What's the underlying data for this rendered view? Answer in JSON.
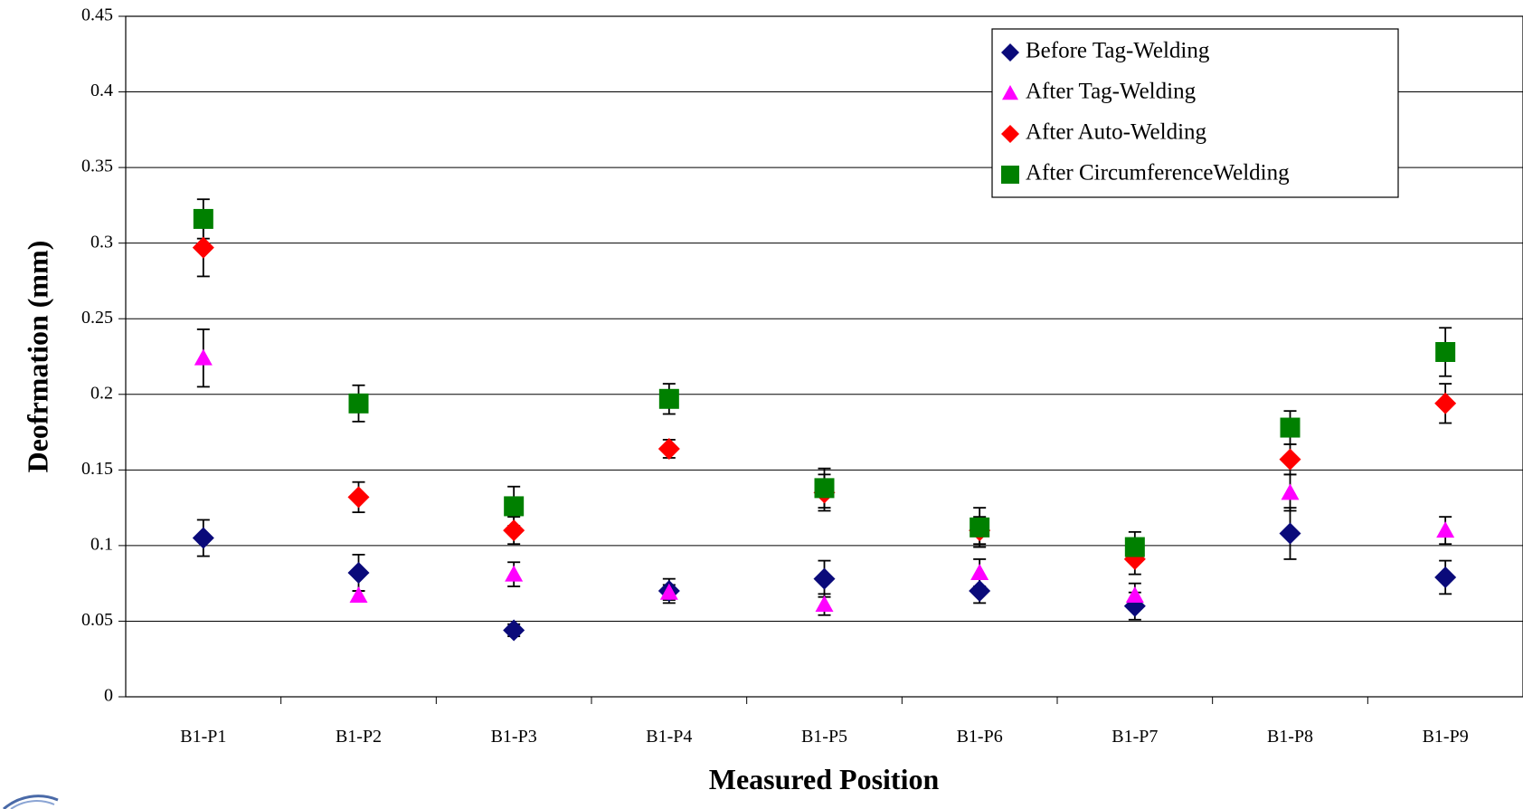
{
  "chart_data": {
    "type": "scatter",
    "xlabel": "Measured Position",
    "ylabel": "Deofrmation (mm)",
    "categories": [
      "B1-P1",
      "B1-P2",
      "B1-P3",
      "B1-P4",
      "B1-P5",
      "B1-P6",
      "B1-P7",
      "B1-P8",
      "B1-P9"
    ],
    "ylim": [
      0,
      0.45
    ],
    "yticks": [
      "0",
      "0.05",
      "0.1",
      "0.15",
      "0.2",
      "0.25",
      "0.3",
      "0.35",
      "0.4",
      "0.45"
    ],
    "ytick_values": [
      0,
      0.05,
      0.1,
      0.15,
      0.2,
      0.25,
      0.3,
      0.35,
      0.4,
      0.45
    ],
    "grid": "horizontal",
    "legend_position": "top-right",
    "series": [
      {
        "name": "Before Tag-Welding",
        "marker": "diamond",
        "color": "#0a0a7a",
        "values": [
          0.105,
          0.082,
          0.044,
          0.07,
          0.078,
          0.07,
          0.06,
          0.108,
          0.079
        ],
        "errors": [
          0.012,
          0.012,
          0.004,
          0.008,
          0.012,
          0.008,
          0.009,
          0.017,
          0.011
        ]
      },
      {
        "name": "After Tag-Welding",
        "marker": "triangle",
        "color": "#ff00ff",
        "values": [
          0.224,
          0.067,
          0.081,
          0.069,
          0.061,
          0.082,
          0.067,
          0.135,
          0.11
        ],
        "errors": [
          0.019,
          0.003,
          0.008,
          0.005,
          0.007,
          0.009,
          0.008,
          0.012,
          0.009
        ]
      },
      {
        "name": "After Auto-Welding",
        "marker": "diamond",
        "color": "#ff0000",
        "values": [
          0.297,
          0.132,
          0.11,
          0.164,
          0.135,
          0.11,
          0.091,
          0.157,
          0.194
        ],
        "errors": [
          0.019,
          0.01,
          0.009,
          0.006,
          0.012,
          0.009,
          0.01,
          0.01,
          0.013
        ]
      },
      {
        "name": "After CircumferenceWelding",
        "marker": "square",
        "color": "#008000",
        "values": [
          0.316,
          0.194,
          0.126,
          0.197,
          0.138,
          0.112,
          0.099,
          0.178,
          0.228
        ],
        "errors": [
          0.013,
          0.012,
          0.013,
          0.01,
          0.013,
          0.013,
          0.01,
          0.011,
          0.016
        ]
      }
    ]
  }
}
